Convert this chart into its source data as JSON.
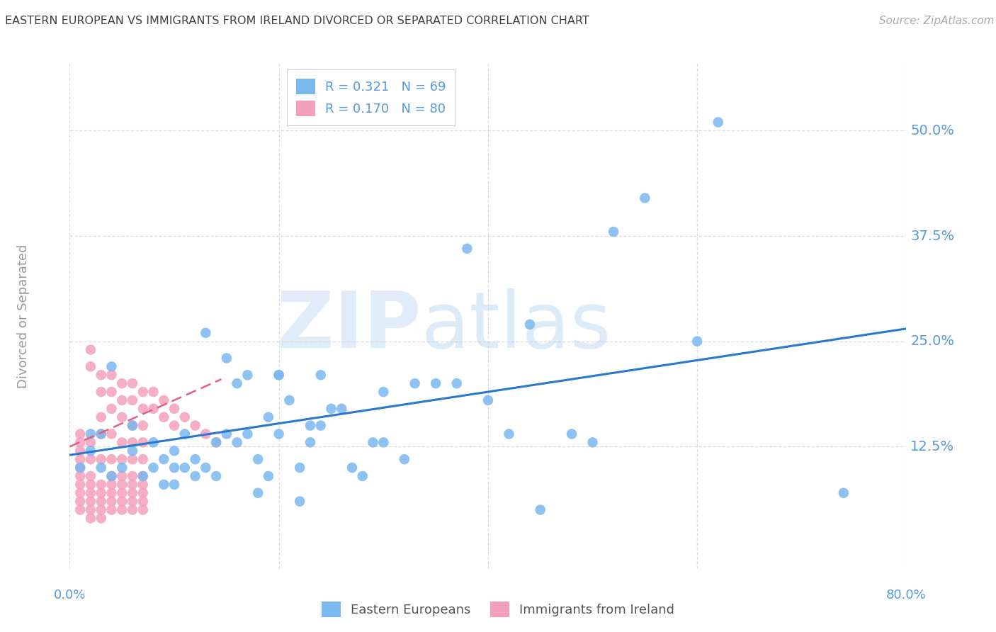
{
  "title": "EASTERN EUROPEAN VS IMMIGRANTS FROM IRELAND DIVORCED OR SEPARATED CORRELATION CHART",
  "source": "Source: ZipAtlas.com",
  "ylabel": "Divorced or Separated",
  "ytick_labels": [
    "50.0%",
    "37.5%",
    "25.0%",
    "12.5%"
  ],
  "ytick_values": [
    0.5,
    0.375,
    0.25,
    0.125
  ],
  "xlim": [
    0.0,
    0.8
  ],
  "ylim": [
    -0.02,
    0.58
  ],
  "legend_blue_R": "R = 0.321",
  "legend_blue_N": "N = 69",
  "legend_pink_R": "R = 0.170",
  "legend_pink_N": "N = 80",
  "blue_color": "#7ab8f0",
  "pink_color": "#f5a0bb",
  "blue_line_color": "#2878d0",
  "pink_line_color": "#e06080",
  "axis_label_color": "#5599dd",
  "title_color": "#404040",
  "blue_scatter_x": [
    0.62,
    0.38,
    0.44,
    0.35,
    0.3,
    0.27,
    0.26,
    0.25,
    0.24,
    0.23,
    0.22,
    0.22,
    0.21,
    0.2,
    0.2,
    0.19,
    0.19,
    0.18,
    0.18,
    0.17,
    0.17,
    0.16,
    0.16,
    0.15,
    0.15,
    0.14,
    0.14,
    0.13,
    0.13,
    0.12,
    0.12,
    0.11,
    0.11,
    0.1,
    0.1,
    0.1,
    0.09,
    0.09,
    0.08,
    0.08,
    0.07,
    0.06,
    0.06,
    0.05,
    0.04,
    0.04,
    0.03,
    0.03,
    0.02,
    0.02,
    0.74,
    0.6,
    0.55,
    0.52,
    0.5,
    0.48,
    0.45,
    0.42,
    0.4,
    0.37,
    0.33,
    0.32,
    0.3,
    0.29,
    0.28,
    0.24,
    0.23,
    0.2,
    0.01
  ],
  "blue_scatter_y": [
    0.51,
    0.36,
    0.27,
    0.2,
    0.19,
    0.1,
    0.17,
    0.17,
    0.21,
    0.15,
    0.06,
    0.1,
    0.18,
    0.14,
    0.21,
    0.09,
    0.16,
    0.07,
    0.11,
    0.14,
    0.21,
    0.13,
    0.2,
    0.14,
    0.23,
    0.13,
    0.09,
    0.1,
    0.26,
    0.09,
    0.11,
    0.1,
    0.14,
    0.08,
    0.1,
    0.12,
    0.08,
    0.11,
    0.1,
    0.13,
    0.09,
    0.12,
    0.15,
    0.1,
    0.09,
    0.22,
    0.14,
    0.1,
    0.12,
    0.14,
    0.07,
    0.25,
    0.42,
    0.38,
    0.13,
    0.14,
    0.05,
    0.14,
    0.18,
    0.2,
    0.2,
    0.11,
    0.13,
    0.13,
    0.09,
    0.15,
    0.13,
    0.21,
    0.1
  ],
  "pink_scatter_x": [
    0.01,
    0.01,
    0.01,
    0.01,
    0.01,
    0.01,
    0.01,
    0.01,
    0.01,
    0.01,
    0.02,
    0.02,
    0.02,
    0.02,
    0.02,
    0.02,
    0.02,
    0.02,
    0.02,
    0.02,
    0.03,
    0.03,
    0.03,
    0.03,
    0.03,
    0.03,
    0.03,
    0.03,
    0.03,
    0.03,
    0.04,
    0.04,
    0.04,
    0.04,
    0.04,
    0.04,
    0.04,
    0.04,
    0.04,
    0.04,
    0.05,
    0.05,
    0.05,
    0.05,
    0.05,
    0.05,
    0.05,
    0.05,
    0.05,
    0.05,
    0.06,
    0.06,
    0.06,
    0.06,
    0.06,
    0.06,
    0.06,
    0.06,
    0.06,
    0.06,
    0.07,
    0.07,
    0.07,
    0.07,
    0.07,
    0.07,
    0.07,
    0.07,
    0.07,
    0.07,
    0.08,
    0.08,
    0.09,
    0.09,
    0.1,
    0.1,
    0.11,
    0.12,
    0.13,
    0.14
  ],
  "pink_scatter_y": [
    0.1,
    0.09,
    0.08,
    0.11,
    0.12,
    0.13,
    0.14,
    0.07,
    0.06,
    0.05,
    0.24,
    0.22,
    0.11,
    0.09,
    0.13,
    0.08,
    0.07,
    0.06,
    0.05,
    0.04,
    0.21,
    0.19,
    0.16,
    0.14,
    0.11,
    0.08,
    0.07,
    0.06,
    0.05,
    0.04,
    0.21,
    0.19,
    0.17,
    0.14,
    0.11,
    0.09,
    0.08,
    0.07,
    0.06,
    0.05,
    0.2,
    0.18,
    0.16,
    0.13,
    0.11,
    0.09,
    0.08,
    0.07,
    0.06,
    0.05,
    0.2,
    0.18,
    0.15,
    0.13,
    0.11,
    0.09,
    0.08,
    0.07,
    0.06,
    0.05,
    0.19,
    0.17,
    0.15,
    0.13,
    0.11,
    0.09,
    0.08,
    0.07,
    0.06,
    0.05,
    0.19,
    0.17,
    0.18,
    0.16,
    0.17,
    0.15,
    0.16,
    0.15,
    0.14,
    0.13
  ],
  "blue_line_x": [
    0.0,
    0.8
  ],
  "blue_line_y": [
    0.115,
    0.265
  ],
  "pink_line_x": [
    0.0,
    0.145
  ],
  "pink_line_y": [
    0.125,
    0.205
  ],
  "grid_color": "#dddddd",
  "bg_color": "#ffffff"
}
